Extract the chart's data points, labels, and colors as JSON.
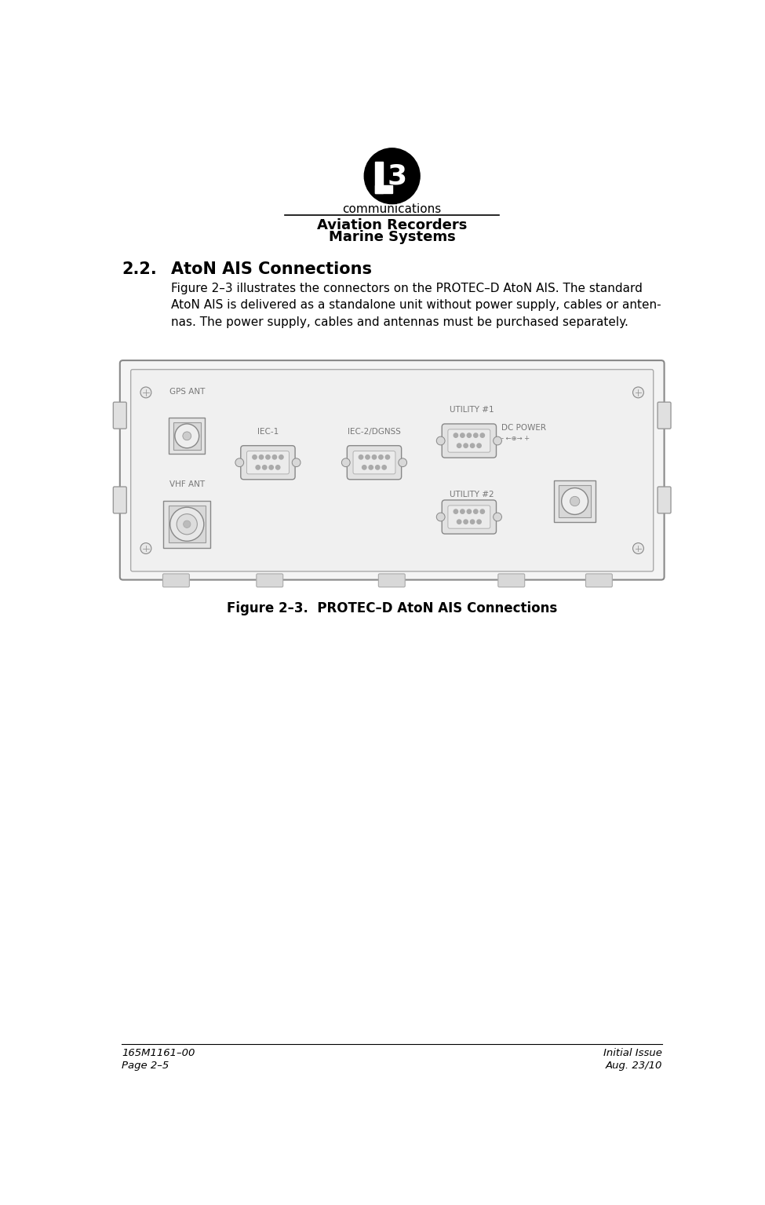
{
  "bg_color": "#ffffff",
  "logo_sub": "communications",
  "header_line1": "Aviation Recorders",
  "header_line2": "Marine Systems",
  "section_num": "2.2.",
  "section_title": "AtoN AIS Connections",
  "body_line1": "Figure 2–3 illustrates the connectors on the PROTEC–D AtoN AIS. The standard",
  "body_line2": "AtoN AIS is delivered as a standalone unit without power supply, cables or anten-",
  "body_line3": "nas. The power supply, cables and antennas must be purchased separately.",
  "figure_caption": "Figure 2–3.  PROTEC–D AtoN AIS Connections",
  "footer_left1": "165M1161–00",
  "footer_left2": "Page 2–5",
  "footer_right1": "Initial Issue",
  "footer_right2": "Aug. 23/10",
  "page_width": 9.75,
  "page_height": 15.35
}
